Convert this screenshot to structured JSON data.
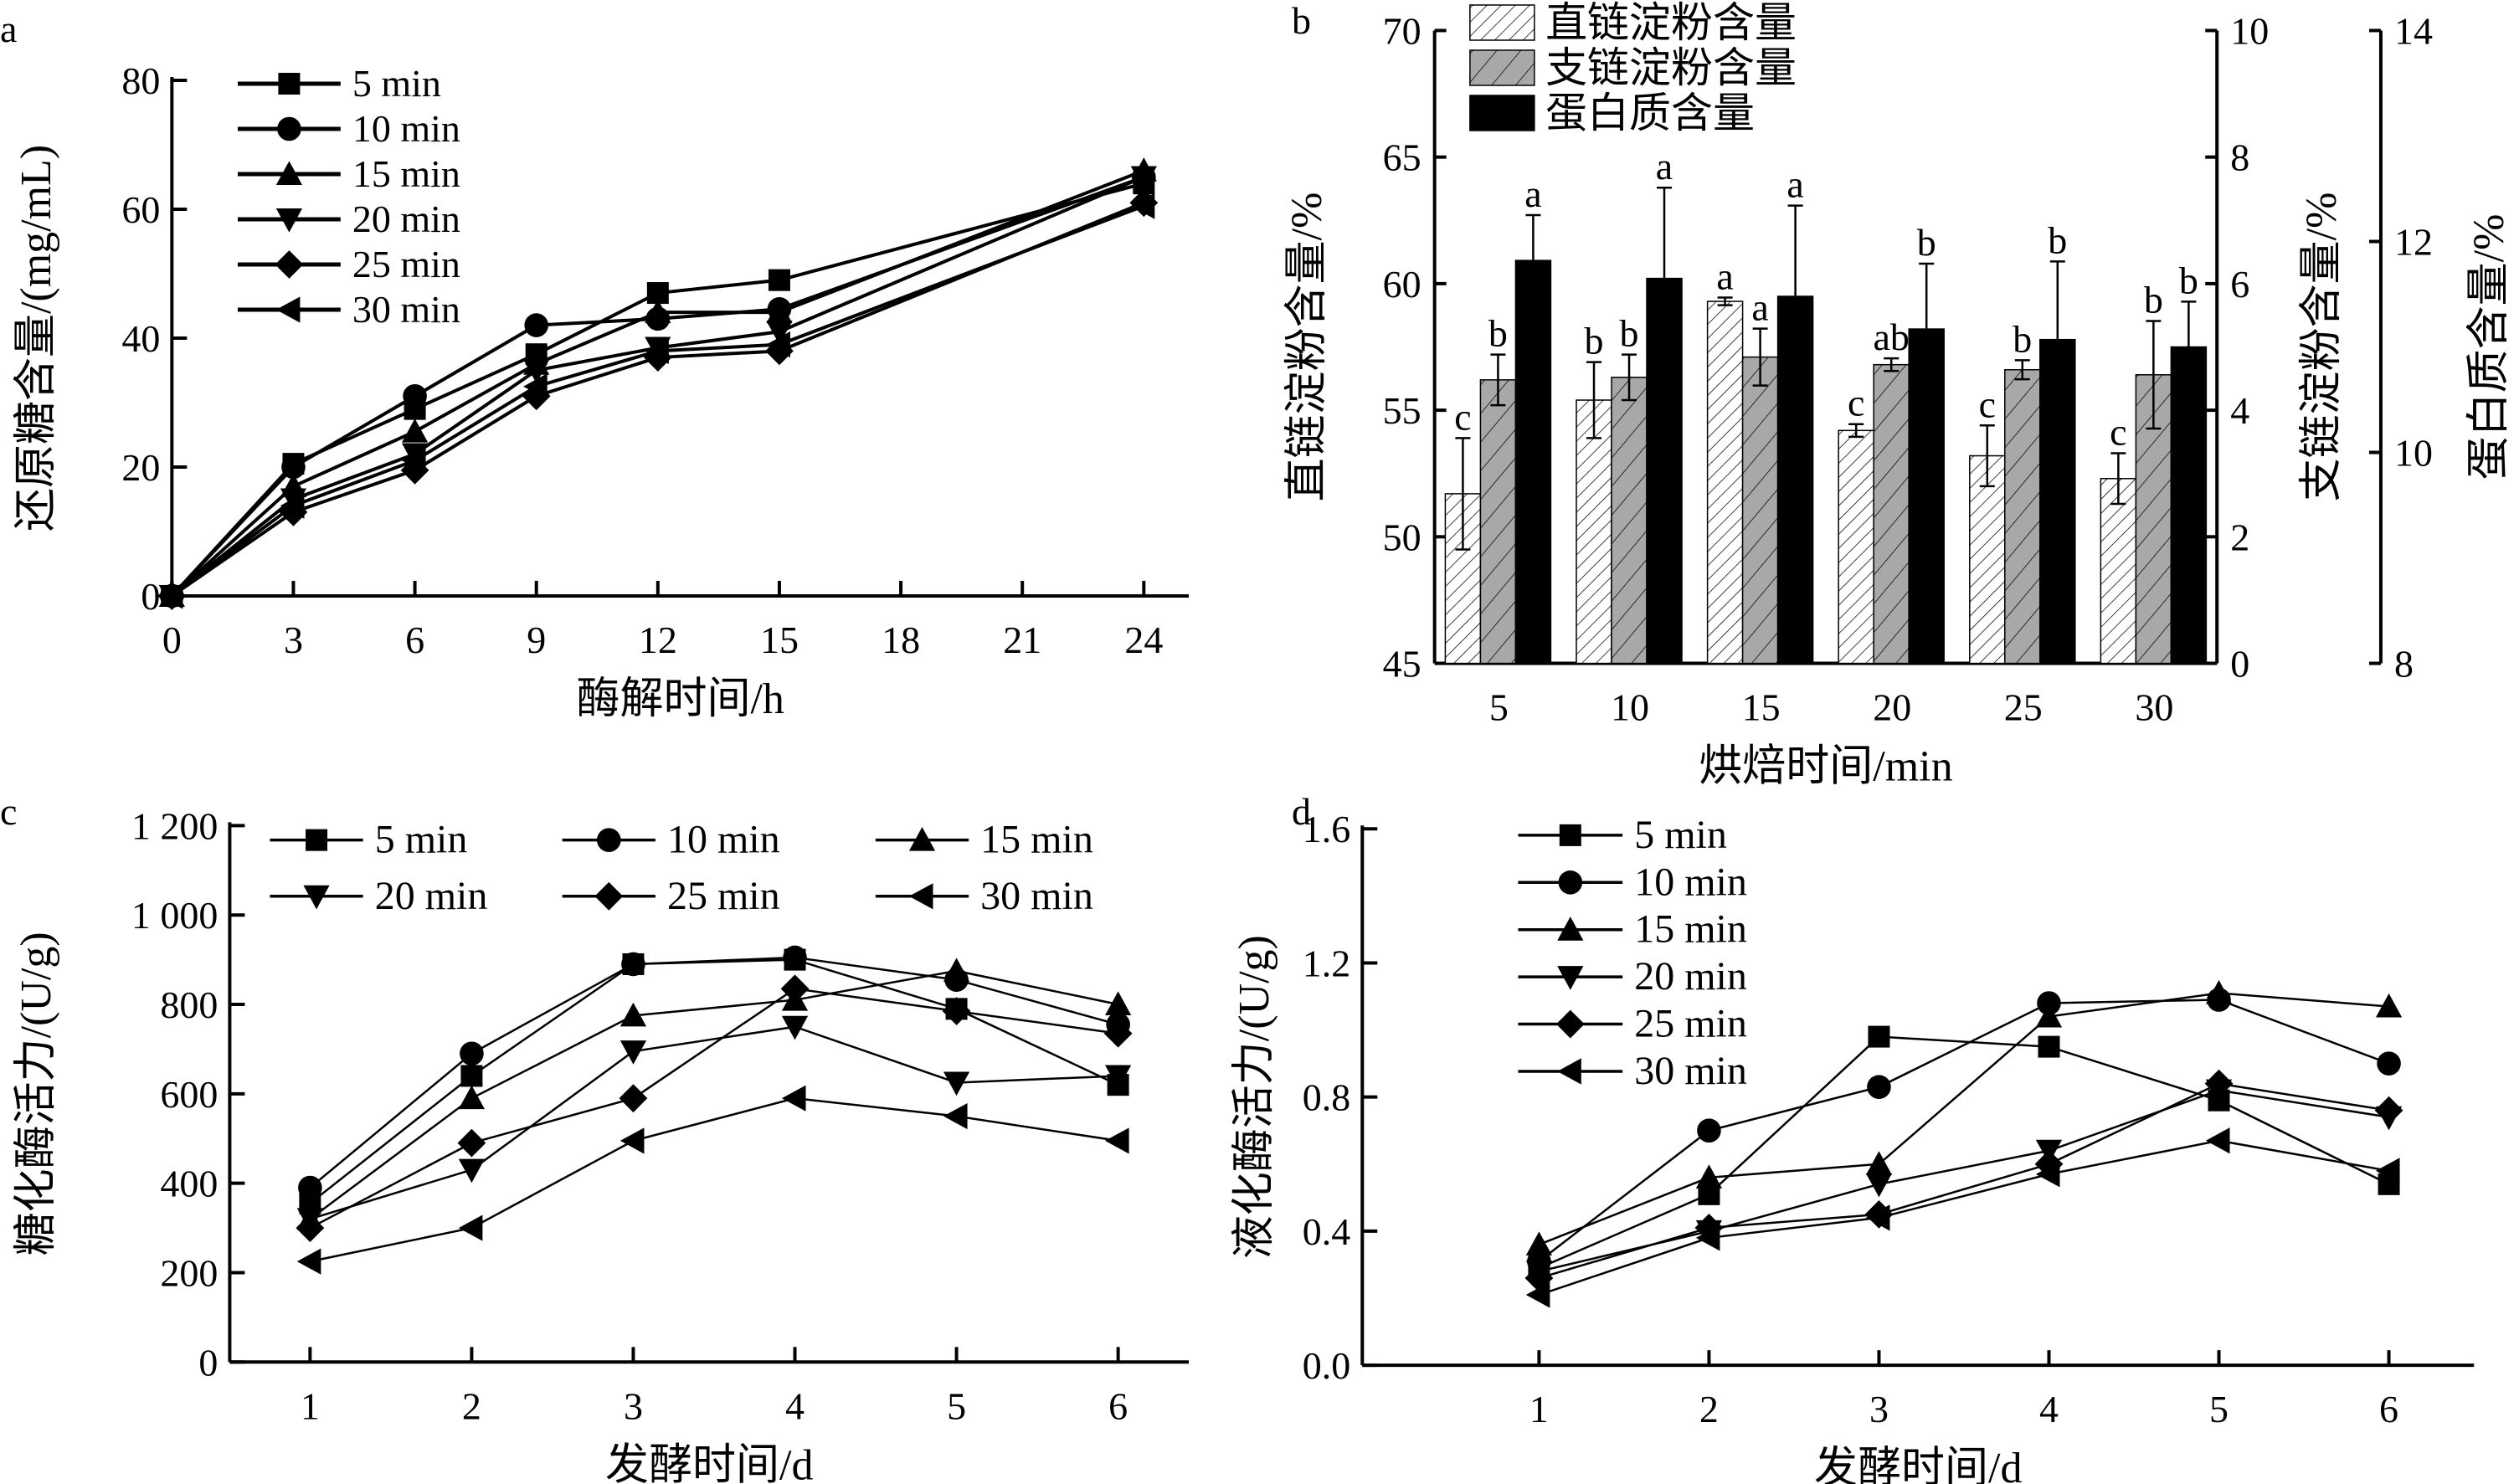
{
  "chart_data": [
    {
      "panel_label": "a",
      "type": "line",
      "xlabel": "酶解时间/h",
      "ylabel": "还原糖含量/(mg/mL)",
      "xlim": [
        0,
        24
      ],
      "ylim": [
        0,
        80
      ],
      "xticks": [
        0,
        3,
        6,
        9,
        12,
        15,
        18,
        21,
        24
      ],
      "yticks": [
        0,
        20,
        40,
        60,
        80
      ],
      "ytick_labels": [
        "0",
        "20",
        "40",
        "60",
        "80"
      ],
      "legend_position": "top-left",
      "x": [
        0,
        3,
        6,
        9,
        12,
        15,
        24
      ],
      "series": [
        {
          "name": "5 min",
          "marker": "square",
          "values": [
            0,
            20.5,
            29,
            37.5,
            47,
            49,
            64
          ]
        },
        {
          "name": "10 min",
          "marker": "circle",
          "values": [
            0,
            20,
            31,
            42,
            43,
            44.5,
            65
          ]
        },
        {
          "name": "15 min",
          "marker": "triangle-up",
          "values": [
            0,
            17,
            25.5,
            36,
            44,
            44,
            66
          ]
        },
        {
          "name": "20 min",
          "marker": "triangle-down",
          "values": [
            0,
            15,
            22,
            35,
            38.5,
            41,
            65
          ]
        },
        {
          "name": "25 min",
          "marker": "diamond",
          "values": [
            0,
            13,
            19.5,
            31,
            37,
            38,
            61
          ]
        },
        {
          "name": "30 min",
          "marker": "triangle-left",
          "values": [
            0,
            14,
            21,
            32.5,
            38,
            39,
            60.5
          ]
        }
      ]
    },
    {
      "panel_label": "b",
      "type": "bar",
      "xlabel": "烘焙时间/min",
      "categories": [
        "5",
        "10",
        "15",
        "20",
        "25",
        "30"
      ],
      "legend_position": "top-left",
      "axes": [
        {
          "ylabel": "直链淀粉含量/%",
          "side": "left",
          "ylim": [
            45,
            70
          ],
          "yticks": [
            45,
            50,
            55,
            60,
            65,
            70
          ]
        },
        {
          "ylabel": "支链淀粉含量/%",
          "side": "right",
          "ylim": [
            0,
            10
          ],
          "yticks": [
            0,
            2,
            4,
            6,
            8,
            10
          ]
        },
        {
          "ylabel": "蛋白质含量/%",
          "side": "right-outer",
          "ylim": [
            8,
            14
          ],
          "yticks": [
            8,
            10,
            12,
            14
          ]
        }
      ],
      "series": [
        {
          "name": "直链淀粉含量",
          "axis": 0,
          "fill": "hatched-white",
          "values": [
            51.7,
            55.4,
            59.3,
            54.2,
            53.2,
            52.3
          ],
          "errors": [
            2.2,
            1.5,
            0.15,
            0.25,
            1.2,
            1.0
          ],
          "letters": [
            "c",
            "b",
            "a",
            "c",
            "c",
            "c"
          ]
        },
        {
          "name": "支链淀粉含量",
          "axis": 1,
          "fill": "hatched-gray",
          "values": [
            4.48,
            4.52,
            4.84,
            4.72,
            4.64,
            4.56
          ],
          "errors": [
            0.4,
            0.36,
            0.45,
            0.1,
            0.15,
            0.85
          ],
          "letters": [
            "b",
            "b",
            "a",
            "ab",
            "b",
            "b"
          ]
        },
        {
          "name": "蛋白质含量",
          "axis": 2,
          "fill": "black",
          "values": [
            11.82,
            11.65,
            11.48,
            11.17,
            11.07,
            11.0
          ],
          "errors": [
            0.43,
            0.86,
            0.86,
            0.62,
            0.74,
            0.43
          ],
          "letters": [
            "a",
            "a",
            "a",
            "b",
            "b",
            "b"
          ]
        }
      ]
    },
    {
      "panel_label": "c",
      "type": "line",
      "xlabel": "发酵时间/d",
      "ylabel": "糖化酶活力/(U/g)",
      "xlim": [
        0.5,
        6.5
      ],
      "ylim": [
        0,
        1200
      ],
      "xticks": [
        1,
        2,
        3,
        4,
        5,
        6
      ],
      "yticks": [
        0,
        200,
        400,
        600,
        800,
        1000,
        1200
      ],
      "ytick_labels": [
        "0",
        "200",
        "400",
        "600",
        "800",
        "1 000",
        "1 200"
      ],
      "legend_position": "top (3 columns)",
      "x": [
        1,
        2,
        3,
        4,
        5,
        6
      ],
      "series": [
        {
          "name": "5 min",
          "marker": "square",
          "values": [
            355,
            640,
            890,
            900,
            790,
            620
          ]
        },
        {
          "name": "10 min",
          "marker": "circle",
          "values": [
            390,
            690,
            890,
            905,
            855,
            755
          ]
        },
        {
          "name": "15 min",
          "marker": "triangle-up",
          "values": [
            320,
            590,
            775,
            810,
            875,
            800
          ]
        },
        {
          "name": "20 min",
          "marker": "triangle-down",
          "values": [
            320,
            430,
            695,
            750,
            625,
            640
          ]
        },
        {
          "name": "25 min",
          "marker": "diamond",
          "values": [
            300,
            490,
            590,
            835,
            785,
            735
          ]
        },
        {
          "name": "30 min",
          "marker": "triangle-left",
          "values": [
            225,
            300,
            495,
            590,
            550,
            495
          ]
        }
      ]
    },
    {
      "panel_label": "d",
      "type": "line",
      "xlabel": "发酵时间/d",
      "ylabel": "液化酶活力/(U/g)",
      "xlim": [
        0.5,
        6.5
      ],
      "ylim": [
        0,
        1.6
      ],
      "xticks": [
        1,
        2,
        3,
        4,
        5,
        6
      ],
      "yticks": [
        0,
        0.4,
        0.8,
        1.2,
        1.6
      ],
      "ytick_labels": [
        "0.0",
        "0.4",
        "0.8",
        "1.2",
        "1.6"
      ],
      "legend_position": "top-left",
      "x": [
        1,
        2,
        3,
        4,
        5,
        6
      ],
      "series": [
        {
          "name": "5 min",
          "marker": "square",
          "values": [
            0.29,
            0.51,
            0.98,
            0.95,
            0.79,
            0.54
          ]
        },
        {
          "name": "10 min",
          "marker": "circle",
          "values": [
            0.31,
            0.7,
            0.83,
            1.08,
            1.09,
            0.9
          ]
        },
        {
          "name": "15 min",
          "marker": "triangle-up",
          "values": [
            0.36,
            0.56,
            0.6,
            1.04,
            1.11,
            1.07
          ]
        },
        {
          "name": "20 min",
          "marker": "triangle-down",
          "values": [
            0.28,
            0.4,
            0.54,
            0.64,
            0.82,
            0.74
          ]
        },
        {
          "name": "25 min",
          "marker": "diamond",
          "values": [
            0.26,
            0.41,
            0.45,
            0.6,
            0.84,
            0.76
          ]
        },
        {
          "name": "30 min",
          "marker": "triangle-left",
          "values": [
            0.21,
            0.38,
            0.44,
            0.57,
            0.67,
            0.58
          ]
        }
      ]
    }
  ]
}
